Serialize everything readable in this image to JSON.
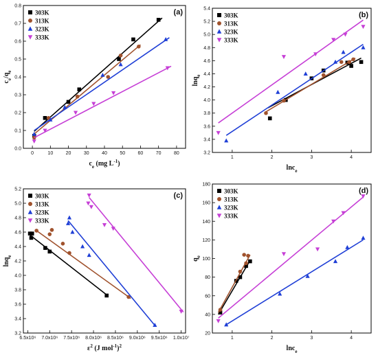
{
  "chart_data": [
    {
      "type": "scatter",
      "panel_label": "(a)",
      "xlabel": "ce (mg L⁻¹)",
      "ylabel": "ce/qe",
      "xlim": [
        -5,
        85
      ],
      "ylim": [
        0,
        0.8
      ],
      "xticks": [
        0,
        10,
        20,
        30,
        40,
        50,
        60,
        70,
        80
      ],
      "yticks": [
        0.0,
        0.1,
        0.2,
        0.3,
        0.4,
        0.5,
        0.6,
        0.7,
        0.8
      ],
      "xtick_labels": [
        "0",
        "10",
        "20",
        "30",
        "40",
        "50",
        "60",
        "70",
        "80"
      ],
      "ytick_labels": [
        "0.0",
        "0.1",
        "0.2",
        "0.3",
        "0.4",
        "0.5",
        "0.6",
        "0.7",
        "0.8"
      ],
      "legend_position": "top-left",
      "series": [
        {
          "name": "303K",
          "color": "#000000",
          "marker": "square",
          "points": [
            [
              1,
              0.07
            ],
            [
              7,
              0.17
            ],
            [
              20,
              0.26
            ],
            [
              26,
              0.33
            ],
            [
              48,
              0.5
            ],
            [
              56,
              0.61
            ],
            [
              70,
              0.72
            ]
          ],
          "fit": [
            [
              1,
              0.095
            ],
            [
              72,
              0.73
            ]
          ]
        },
        {
          "name": "313K",
          "color": "#a0522d",
          "marker": "circle",
          "points": [
            [
              1,
              0.06
            ],
            [
              9,
              0.17
            ],
            [
              25,
              0.29
            ],
            [
              42,
              0.4
            ],
            [
              49,
              0.52
            ],
            [
              59,
              0.57
            ]
          ],
          "fit": [
            [
              1,
              0.08
            ],
            [
              60,
              0.58
            ]
          ]
        },
        {
          "name": "323K",
          "color": "#1f3fd6",
          "marker": "triangle-up",
          "points": [
            [
              1,
              0.08
            ],
            [
              10,
              0.16
            ],
            [
              18,
              0.23
            ],
            [
              39,
              0.41
            ],
            [
              49,
              0.47
            ],
            [
              74,
              0.61
            ]
          ],
          "fit": [
            [
              1,
              0.1
            ],
            [
              76,
              0.62
            ]
          ]
        },
        {
          "name": "333K",
          "color": "#c63fd6",
          "marker": "triangle-down",
          "points": [
            [
              1,
              0.04
            ],
            [
              7,
              0.1
            ],
            [
              24,
              0.2
            ],
            [
              34,
              0.25
            ],
            [
              45,
              0.31
            ],
            [
              75,
              0.45
            ]
          ],
          "fit": [
            [
              1,
              0.06
            ],
            [
              77,
              0.46
            ]
          ]
        }
      ]
    },
    {
      "type": "scatter",
      "panel_label": "(b)",
      "xlabel": "lnce",
      "ylabel": "lnqe",
      "xlim": [
        0.5,
        4.5
      ],
      "ylim": [
        3.2,
        5.4
      ],
      "xticks": [
        1,
        2,
        3,
        4
      ],
      "yticks": [
        3.2,
        3.4,
        3.6,
        3.8,
        4.0,
        4.2,
        4.4,
        4.6,
        4.8,
        5.0,
        5.2,
        5.4
      ],
      "xtick_labels": [
        "1",
        "2",
        "3",
        "4"
      ],
      "ytick_labels": [
        "3.2",
        "3.4",
        "3.6",
        "3.8",
        "4.0",
        "4.2",
        "4.4",
        "4.6",
        "4.8",
        "5.0",
        "5.2",
        "5.4"
      ],
      "legend_position": "top-left",
      "series": [
        {
          "name": "303K",
          "color": "#000000",
          "marker": "square",
          "points": [
            [
              1.95,
              3.72
            ],
            [
              2.35,
              4.0
            ],
            [
              3.0,
              4.33
            ],
            [
              3.3,
              4.45
            ],
            [
              3.9,
              4.57
            ],
            [
              4.0,
              4.52
            ],
            [
              4.25,
              4.58
            ]
          ],
          "fit": [
            [
              1.9,
              3.88
            ],
            [
              4.25,
              4.64
            ]
          ]
        },
        {
          "name": "313K",
          "color": "#a0522d",
          "marker": "circle",
          "points": [
            [
              1.85,
              3.8
            ],
            [
              2.3,
              3.99
            ],
            [
              3.3,
              4.38
            ],
            [
              3.75,
              4.58
            ],
            [
              3.95,
              4.58
            ],
            [
              4.05,
              4.62
            ]
          ],
          "fit": [
            [
              1.85,
              3.82
            ],
            [
              4.1,
              4.64
            ]
          ]
        },
        {
          "name": "323K",
          "color": "#1f3fd6",
          "marker": "triangle-up",
          "points": [
            [
              0.85,
              3.38
            ],
            [
              2.15,
              4.12
            ],
            [
              2.85,
              4.4
            ],
            [
              3.6,
              4.58
            ],
            [
              3.8,
              4.73
            ],
            [
              4.3,
              4.8
            ]
          ],
          "fit": [
            [
              0.85,
              3.46
            ],
            [
              4.3,
              4.85
            ]
          ]
        },
        {
          "name": "333K",
          "color": "#c63fd6",
          "marker": "triangle-down",
          "points": [
            [
              0.65,
              3.5
            ],
            [
              2.3,
              4.66
            ],
            [
              3.1,
              4.7
            ],
            [
              3.55,
              4.92
            ],
            [
              3.85,
              5.0
            ],
            [
              4.3,
              5.12
            ]
          ],
          "fit": [
            [
              0.65,
              3.65
            ],
            [
              4.3,
              5.22
            ]
          ]
        }
      ]
    },
    {
      "type": "scatter",
      "panel_label": "(c)",
      "xlabel": "ε² (J mol⁻¹)²",
      "ylabel": "lnqe",
      "xlim": [
        6400000,
        10100000
      ],
      "ylim": [
        3.2,
        5.2
      ],
      "xticks": [
        6500000,
        7000000,
        7500000,
        8000000,
        8500000,
        9000000,
        9500000,
        10000000
      ],
      "yticks": [
        3.2,
        3.4,
        3.6,
        3.8,
        4.0,
        4.2,
        4.4,
        4.6,
        4.8,
        5.0,
        5.2
      ],
      "xtick_labels": [
        "6.5x10⁶",
        "7.0x10⁶",
        "7.5x10⁶",
        "8.0x10⁶",
        "8.5x10⁶",
        "9.0x10⁶",
        "9.5x10⁶",
        "1.0x10⁷"
      ],
      "ytick_labels": [
        "3.2",
        "3.4",
        "3.6",
        "3.8",
        "4.0",
        "4.2",
        "4.4",
        "4.6",
        "4.8",
        "5.0",
        "5.2"
      ],
      "legend_position": "top-left",
      "series": [
        {
          "name": "303K",
          "color": "#000000",
          "marker": "square",
          "points": [
            [
              6550000,
              4.58
            ],
            [
              6580000,
              4.52
            ],
            [
              6600000,
              4.58
            ],
            [
              6900000,
              4.38
            ],
            [
              7000000,
              4.33
            ],
            [
              8300000,
              3.72
            ]
          ],
          "fit": [
            [
              6550000,
              4.56
            ],
            [
              8320000,
              3.72
            ]
          ]
        },
        {
          "name": "313K",
          "color": "#a0522d",
          "marker": "circle",
          "points": [
            [
              6700000,
              4.62
            ],
            [
              7000000,
              4.57
            ],
            [
              7050000,
              4.63
            ],
            [
              7300000,
              4.44
            ],
            [
              7450000,
              4.31
            ],
            [
              8800000,
              3.7
            ]
          ],
          "fit": [
            [
              6700000,
              4.62
            ],
            [
              8850000,
              3.68
            ]
          ]
        },
        {
          "name": "323K",
          "color": "#1f3fd6",
          "marker": "triangle-up",
          "points": [
            [
              7450000,
              4.8
            ],
            [
              7420000,
              4.72
            ],
            [
              7520000,
              4.6
            ],
            [
              7750000,
              4.4
            ],
            [
              7900000,
              4.28
            ],
            [
              9400000,
              3.31
            ]
          ],
          "fit": [
            [
              7420000,
              4.76
            ],
            [
              9420000,
              3.29
            ]
          ]
        },
        {
          "name": "333K",
          "color": "#c63fd6",
          "marker": "triangle-down",
          "points": [
            [
              7900000,
              5.11
            ],
            [
              7880000,
              5.0
            ],
            [
              7950000,
              4.95
            ],
            [
              8250000,
              4.7
            ],
            [
              8450000,
              4.65
            ],
            [
              10000000,
              3.5
            ]
          ],
          "fit": [
            [
              7900000,
              5.08
            ],
            [
              10050000,
              3.49
            ]
          ]
        }
      ]
    },
    {
      "type": "scatter",
      "panel_label": "(d)",
      "xlabel": "lnce",
      "ylabel": "qe",
      "xlim": [
        0.5,
        4.5
      ],
      "ylim": [
        20,
        180
      ],
      "xticks": [
        1,
        2,
        3,
        4
      ],
      "yticks": [
        20,
        40,
        60,
        80,
        100,
        120,
        140,
        160,
        180
      ],
      "xtick_labels": [
        "1",
        "2",
        "3",
        "4"
      ],
      "ytick_labels": [
        "20",
        "40",
        "60",
        "80",
        "100",
        "120",
        "140",
        "160",
        "180"
      ],
      "legend_position": "top-left",
      "series": [
        {
          "name": "303K",
          "color": "#000000",
          "marker": "square",
          "points": [
            [
              0.7,
              42
            ],
            [
              1.1,
              76
            ],
            [
              1.2,
              80
            ],
            [
              1.35,
              92
            ],
            [
              1.45,
              97
            ]
          ],
          "fit": [
            [
              0.65,
              40
            ],
            [
              1.45,
              98
            ]
          ]
        },
        {
          "name": "313K",
          "color": "#a0522d",
          "marker": "circle",
          "points": [
            [
              0.7,
              45
            ],
            [
              1.2,
              86
            ],
            [
              1.3,
              104
            ],
            [
              1.4,
              103
            ],
            [
              1.35,
              95
            ]
          ],
          "fit": [
            [
              0.65,
              42
            ],
            [
              1.45,
              104
            ]
          ]
        },
        {
          "name": "323K",
          "color": "#1f3fd6",
          "marker": "triangle-up",
          "points": [
            [
              0.85,
              29
            ],
            [
              2.2,
              62
            ],
            [
              2.9,
              81
            ],
            [
              3.6,
              97
            ],
            [
              3.9,
              112
            ],
            [
              4.3,
              122
            ]
          ],
          "fit": [
            [
              0.85,
              29
            ],
            [
              4.3,
              120
            ]
          ]
        },
        {
          "name": "333K",
          "color": "#c63fd6",
          "marker": "triangle-down",
          "points": [
            [
              0.65,
              33
            ],
            [
              2.3,
              105
            ],
            [
              3.15,
              110
            ],
            [
              3.55,
              140
            ],
            [
              3.8,
              149
            ],
            [
              4.3,
              167
            ]
          ],
          "fit": [
            [
              0.65,
              36
            ],
            [
              4.3,
              166
            ]
          ]
        }
      ]
    }
  ]
}
